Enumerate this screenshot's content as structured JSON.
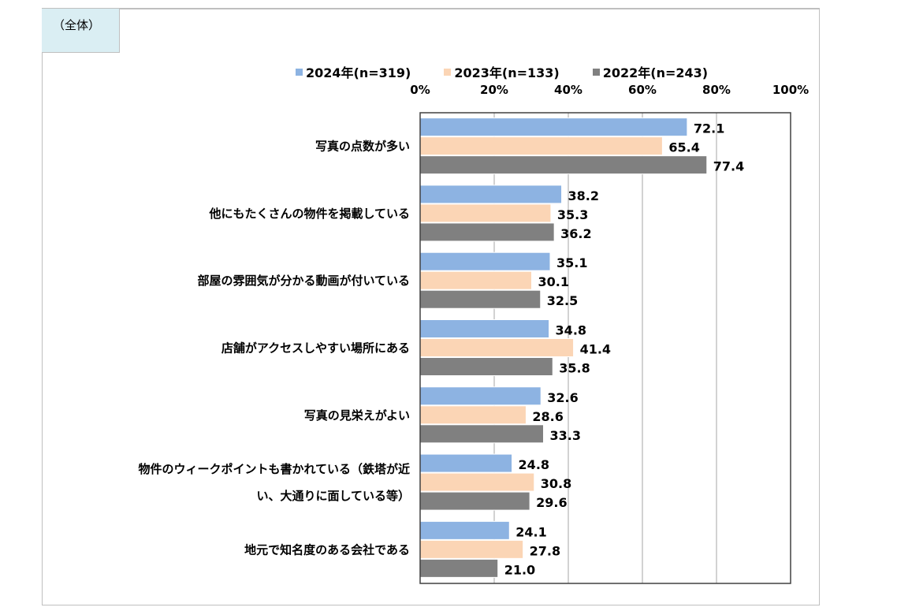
{
  "panel_label": "（全体）",
  "chart_data": {
    "type": "bar",
    "orientation": "horizontal",
    "categories": [
      "写真の点数が多い",
      "他にもたくさんの物件を掲載している",
      "部屋の雰囲気が分かる動画が付いている",
      "店舗がアクセスしやすい場所にある",
      "写真の見栄えがよい",
      "物件のウィークポイントも書かれている（鉄塔が近|い、大通りに面している等）",
      "地元で知名度のある会社である"
    ],
    "series": [
      {
        "name": "2024年(n=319)",
        "color": "#8db3e2",
        "values": [
          72.1,
          38.2,
          35.1,
          34.8,
          32.6,
          24.8,
          24.1
        ]
      },
      {
        "name": "2023年(n=133)",
        "color": "#fbd5b5",
        "values": [
          65.4,
          35.3,
          30.1,
          41.4,
          28.6,
          30.8,
          27.8
        ]
      },
      {
        "name": "2022年(n=243)",
        "color": "#808080",
        "values": [
          77.4,
          36.2,
          32.5,
          35.8,
          33.3,
          29.6,
          21.0
        ]
      }
    ],
    "xlim": [
      0,
      100
    ],
    "ticks": [
      "0%",
      "20%",
      "40%",
      "60%",
      "80%",
      "100%"
    ],
    "grid": true,
    "legend": "top"
  }
}
